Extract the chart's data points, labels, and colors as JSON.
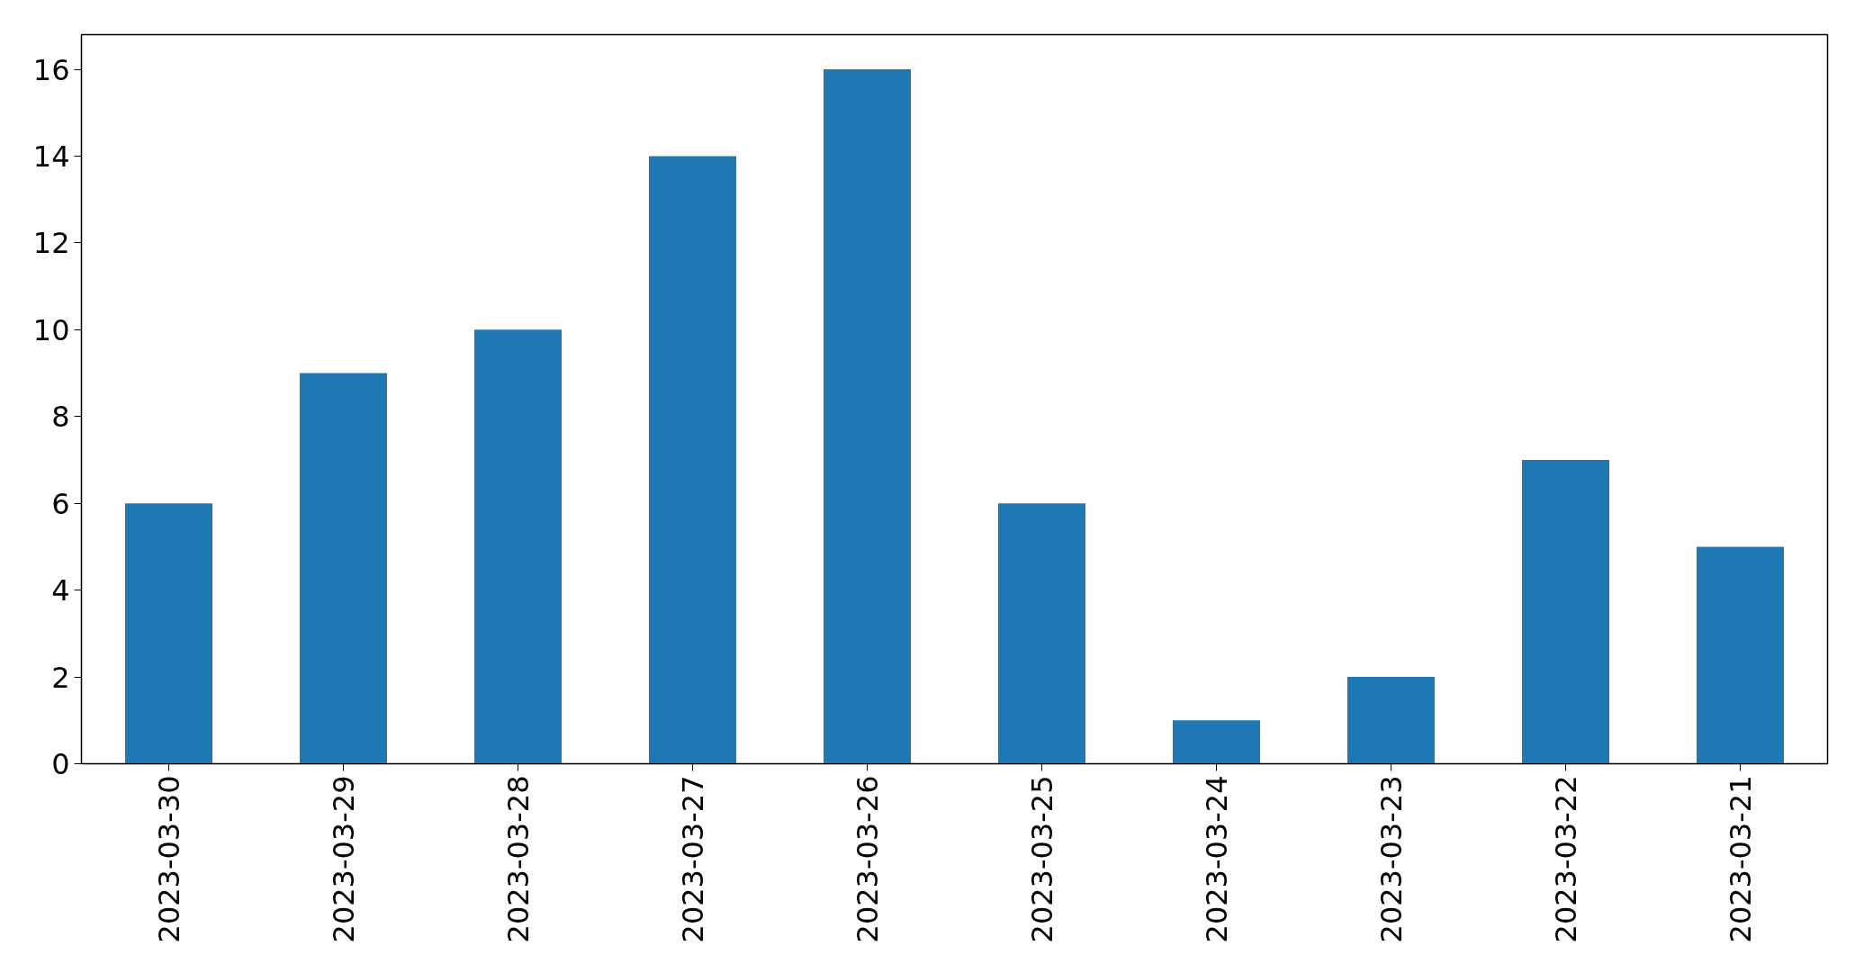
{
  "chart_data": {
    "type": "bar",
    "categories": [
      "2023-03-30",
      "2023-03-29",
      "2023-03-28",
      "2023-03-27",
      "2023-03-26",
      "2023-03-25",
      "2023-03-24",
      "2023-03-23",
      "2023-03-22",
      "2023-03-21"
    ],
    "values": [
      6,
      9,
      10,
      14,
      16,
      6,
      1,
      2,
      7,
      5
    ],
    "color": "#1f77b4",
    "ylim": [
      0,
      16.8
    ],
    "yticks": [
      0,
      2,
      4,
      6,
      8,
      10,
      12,
      14,
      16
    ],
    "grid": false
  }
}
